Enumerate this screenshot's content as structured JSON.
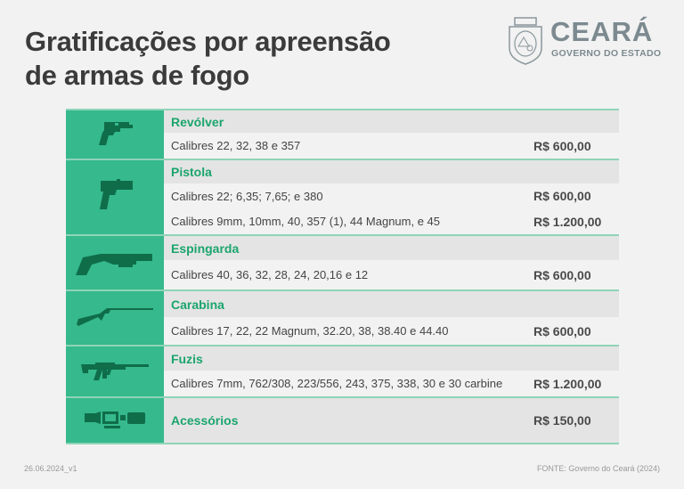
{
  "title_line1": "Gratificações por apreensão",
  "title_line2": "de armas de fogo",
  "logo": {
    "name": "CEARÁ",
    "subtitle": "GOVERNO DO ESTADO"
  },
  "categories": [
    {
      "name": "Revólver",
      "icon": "revolver-icon",
      "items": [
        {
          "desc": "Calibres 22, 32, 38 e 357",
          "price": "R$ 600,00"
        }
      ]
    },
    {
      "name": "Pistola",
      "icon": "pistol-icon",
      "items": [
        {
          "desc": "Calibres 22; 6,35; 7,65; e 380",
          "price": "R$ 600,00"
        },
        {
          "desc": "Calibres 9mm, 10mm, 40, 357 (1), 44 Magnum, e 45",
          "price": "R$ 1.200,00"
        }
      ]
    },
    {
      "name": "Espingarda",
      "icon": "shotgun-icon",
      "items": [
        {
          "desc": "Calibres 40, 36, 32, 28, 24, 20,16 e 12",
          "price": "R$ 600,00"
        }
      ]
    },
    {
      "name": "Carabina",
      "icon": "carbine-icon",
      "items": [
        {
          "desc": "Calibres 17, 22, 22 Magnum, 32.20, 38, 38.40 e 44.40",
          "price": "R$ 600,00"
        }
      ]
    },
    {
      "name": "Fuzis",
      "icon": "rifle-icon",
      "items": [
        {
          "desc": "Calibres 7mm, 762/308, 223/556, 243, 375, 338, 30 e 30 carbine",
          "price": "R$ 1.200,00"
        }
      ]
    },
    {
      "name": "Acessórios",
      "icon": "accessories-icon",
      "price": "R$ 150,00",
      "items": []
    }
  ],
  "footer": {
    "version": "26.06.2024_v1",
    "source": "FONTE: Governo do Ceará (2024)"
  }
}
